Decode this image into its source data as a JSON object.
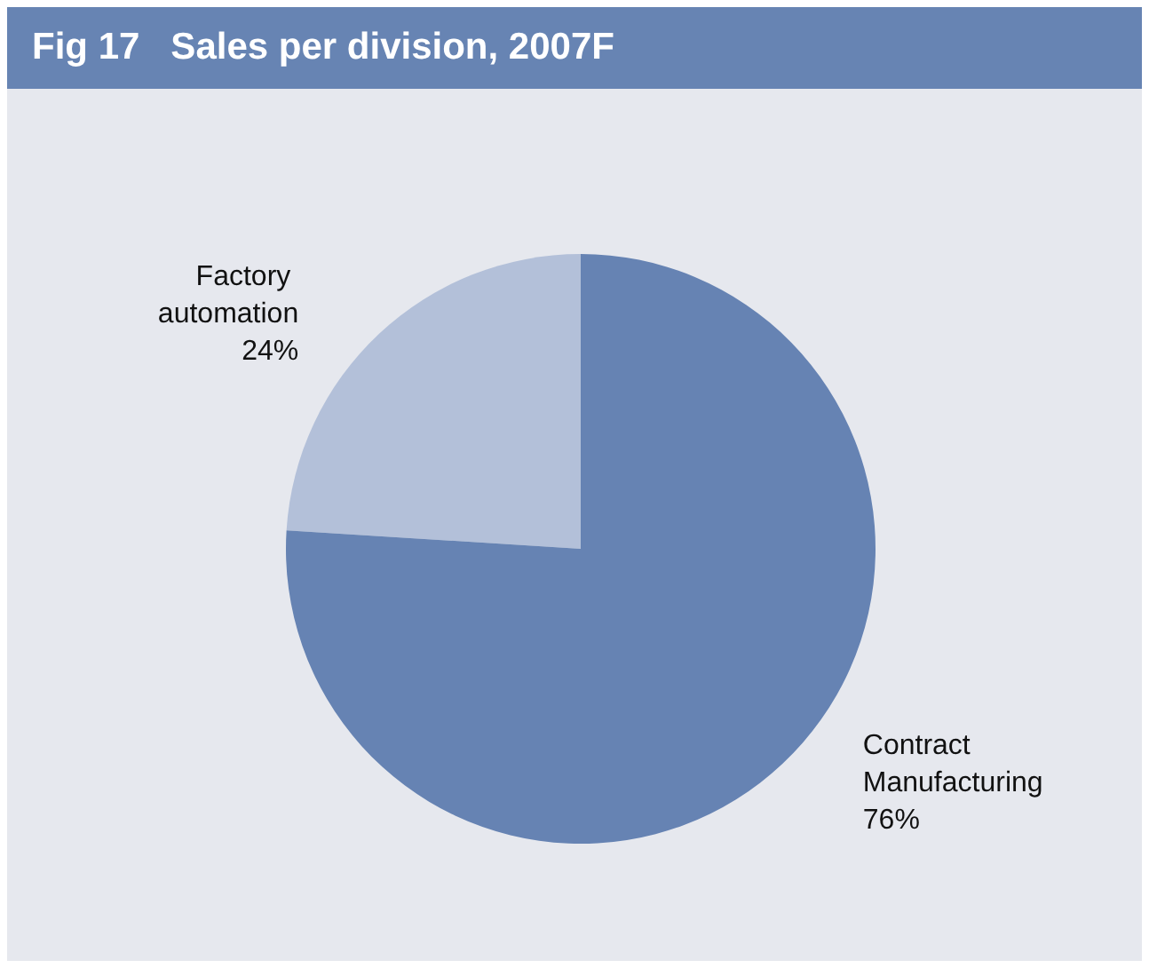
{
  "chart_data": {
    "type": "pie",
    "title": "Fig 17   Sales per division, 2007F",
    "categories": [
      "Factory automation",
      "Contract Manufacturing"
    ],
    "values": [
      24,
      76
    ],
    "colors": [
      "#b3c0d9",
      "#6683b3"
    ],
    "value_labels": [
      "24%",
      "76%"
    ],
    "legend": false
  }
}
